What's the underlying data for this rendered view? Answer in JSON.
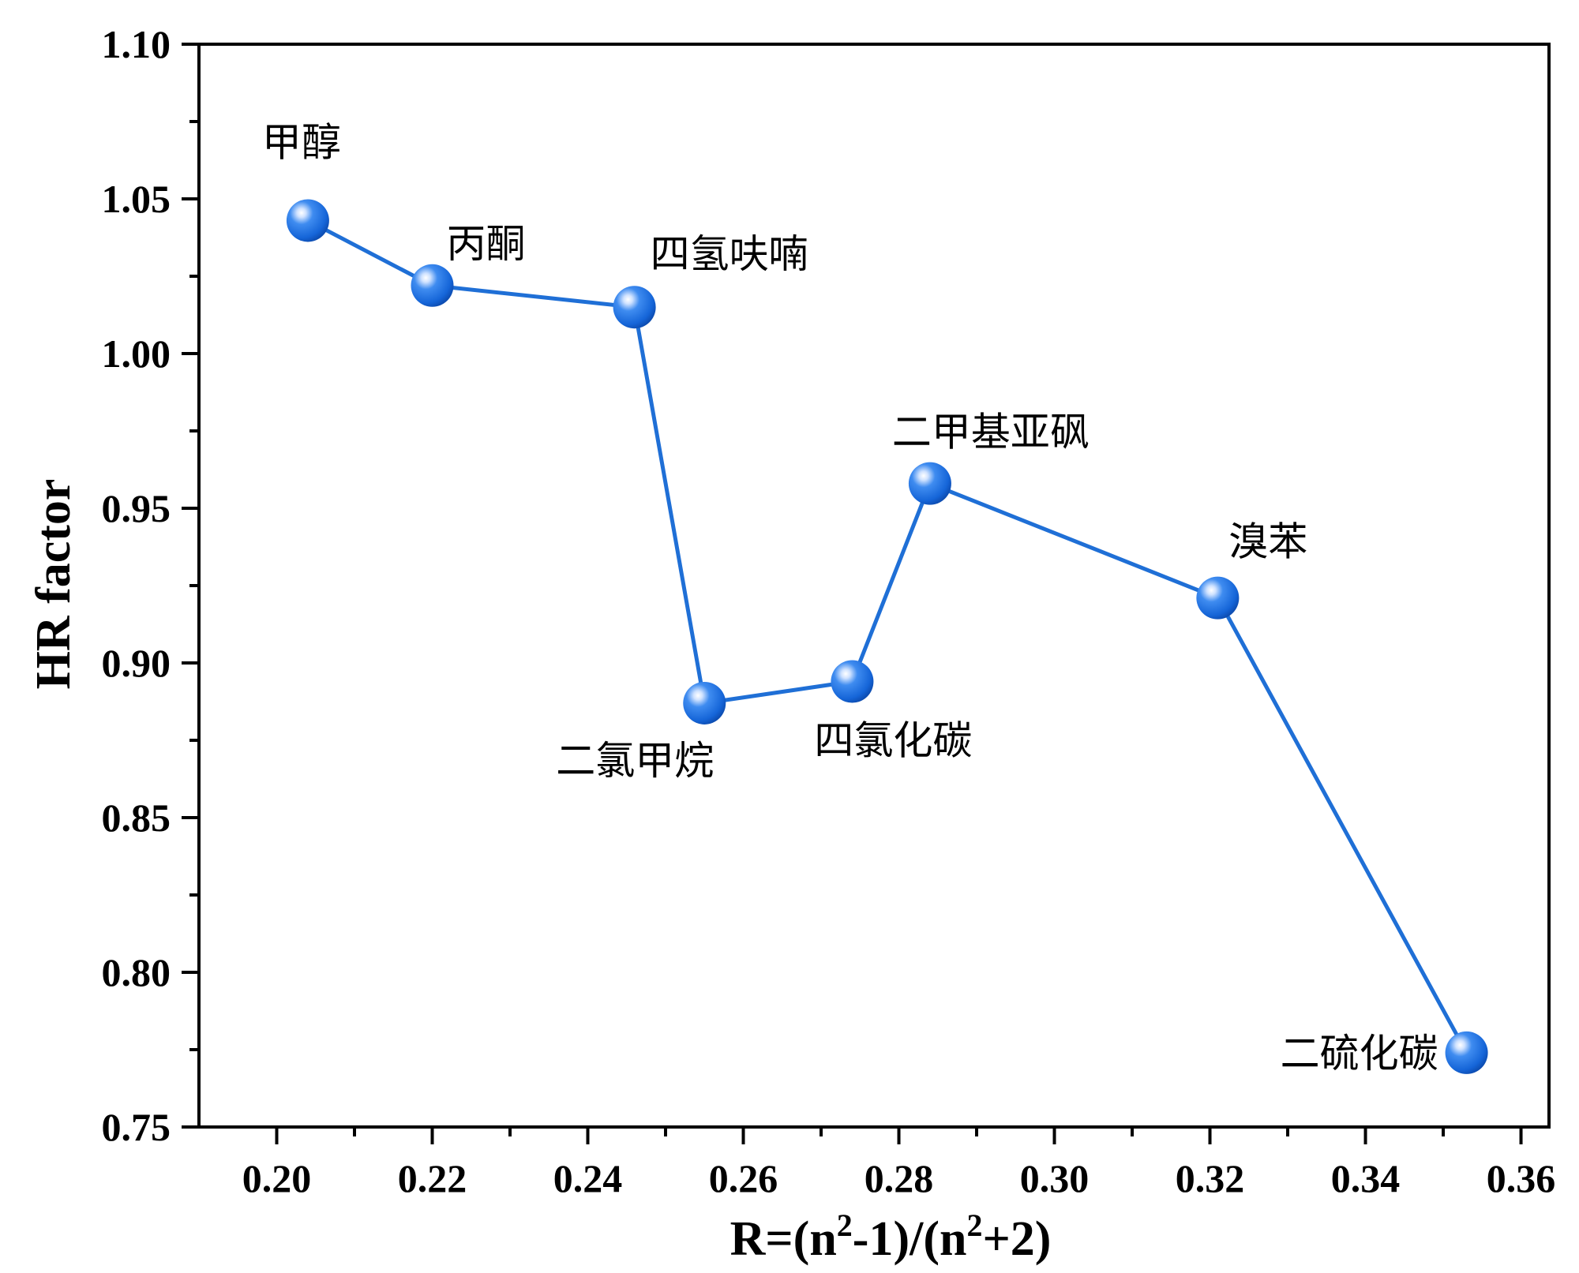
{
  "chart_data": {
    "type": "line",
    "title": "",
    "xlabel": {
      "prefix": "R=(n",
      "sup1": "2",
      "mid": "-1)/(n",
      "sup2": "2",
      "suffix": "+2)"
    },
    "ylabel": "HR factor",
    "xlim": [
      0.19,
      0.3636
    ],
    "ylim": [
      0.75,
      1.1
    ],
    "xticks": [
      "0.20",
      "0.22",
      "0.24",
      "0.26",
      "0.28",
      "0.30",
      "0.32",
      "0.34",
      "0.36"
    ],
    "yticks": [
      "0.75",
      "0.80",
      "0.85",
      "0.90",
      "0.95",
      "1.00",
      "1.05",
      "1.10"
    ],
    "grid": false,
    "line_color": "#1f6fd6",
    "marker_color": "#1565d8",
    "points": [
      {
        "x": 0.204,
        "y": 1.043,
        "label": "甲醇",
        "label_pos": "above-left"
      },
      {
        "x": 0.22,
        "y": 1.022,
        "label": "丙酮",
        "label_pos": "above-right"
      },
      {
        "x": 0.246,
        "y": 1.015,
        "label": "四氢呋喃",
        "label_pos": "above-right"
      },
      {
        "x": 0.255,
        "y": 0.887,
        "label": "二氯甲烷",
        "label_pos": "below-left"
      },
      {
        "x": 0.274,
        "y": 0.894,
        "label": "四氯化碳",
        "label_pos": "below"
      },
      {
        "x": 0.284,
        "y": 0.958,
        "label": "二甲基亚砜",
        "label_pos": "above-right"
      },
      {
        "x": 0.321,
        "y": 0.921,
        "label": "溴苯",
        "label_pos": "above-right"
      },
      {
        "x": 0.353,
        "y": 0.774,
        "label": "二硫化碳",
        "label_pos": "left"
      }
    ]
  }
}
